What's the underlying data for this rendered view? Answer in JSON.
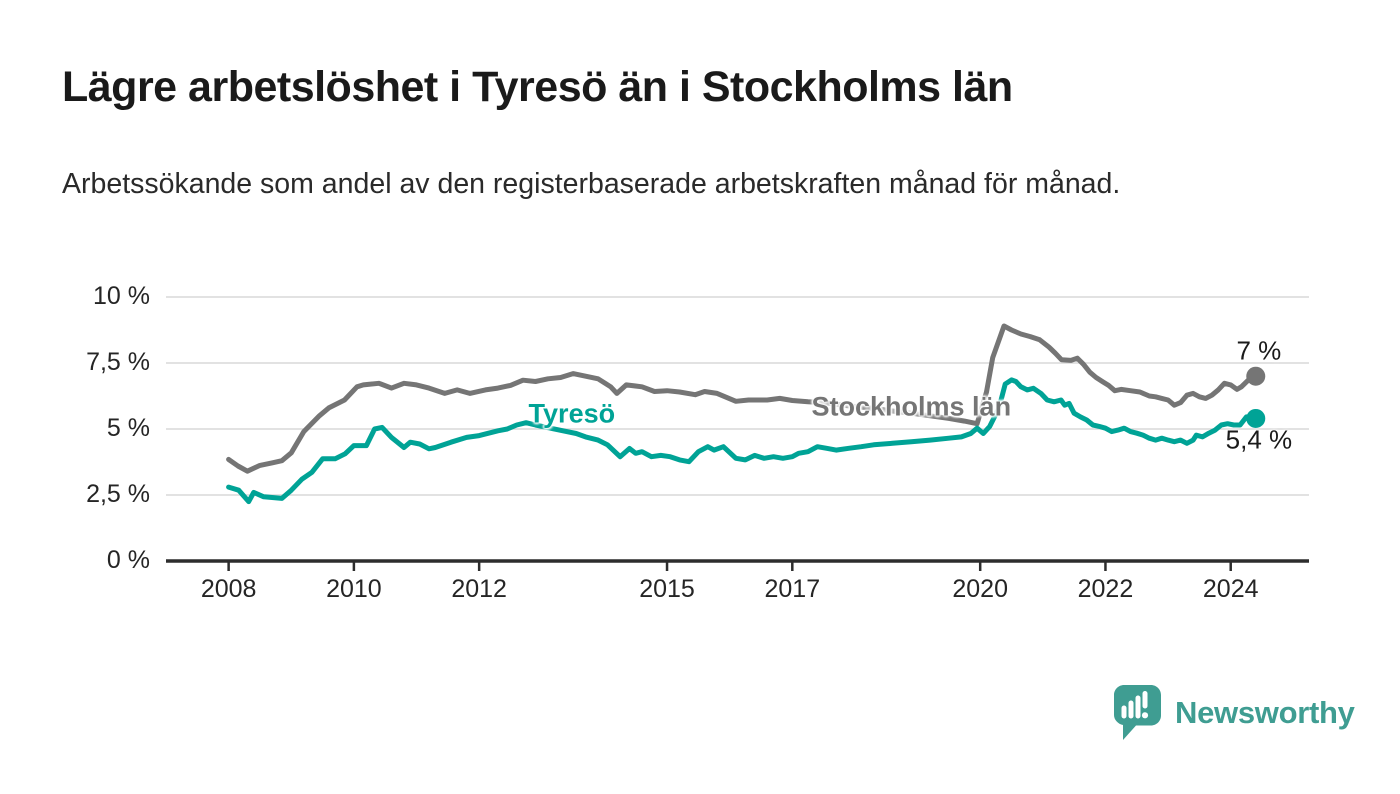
{
  "header": {
    "title": "Lägre arbetslöshet i Tyresö än i Stockholms län",
    "subtitle": "Arbetssökande som andel av den registerbaserade arbetskraften månad för månad."
  },
  "branding": {
    "name": "Newsworthy",
    "color": "#3f9d92",
    "icon": "speech-bubble-bar-chart"
  },
  "chart_data": {
    "type": "line",
    "title": "Lägre arbetslöshet i Tyresö än i Stockholms län",
    "xlabel": "",
    "ylabel": "",
    "grid": true,
    "x_axis": {
      "range": [
        2007.0,
        2025.25
      ],
      "ticks": [
        2008,
        2010,
        2012,
        2015,
        2017,
        2020,
        2022,
        2024
      ],
      "tick_labels": [
        "2008",
        "2010",
        "2012",
        "2015",
        "2017",
        "2020",
        "2022",
        "2024"
      ]
    },
    "y_axis": {
      "range": [
        0,
        10
      ],
      "unit": "%",
      "ticks": [
        0,
        2.5,
        5,
        7.5,
        10
      ],
      "tick_labels": [
        "0 %",
        "2,5 %",
        "5 %",
        "7,5 %",
        "10 %"
      ]
    },
    "colors": {
      "grid": "#d9d9d9",
      "axis": "#2d2d2d",
      "tick_text": "#252525",
      "annotation_text": "#1a1a1a"
    },
    "series": [
      {
        "name": "Stockholms län",
        "color": "#757575",
        "label_anchor": {
          "x": 2018.9,
          "y": 5.85
        },
        "end_label": "7 %",
        "end_value": 7.0,
        "end_label_anchor": {
          "x": 2024.45,
          "y": 7.95
        },
        "points": [
          [
            2008.0,
            3.85
          ],
          [
            2008.15,
            3.6
          ],
          [
            2008.3,
            3.4
          ],
          [
            2008.5,
            3.62
          ],
          [
            2008.7,
            3.72
          ],
          [
            2008.85,
            3.8
          ],
          [
            2009.0,
            4.1
          ],
          [
            2009.2,
            4.9
          ],
          [
            2009.45,
            5.5
          ],
          [
            2009.6,
            5.8
          ],
          [
            2009.85,
            6.1
          ],
          [
            2010.05,
            6.6
          ],
          [
            2010.15,
            6.67
          ],
          [
            2010.4,
            6.73
          ],
          [
            2010.6,
            6.55
          ],
          [
            2010.8,
            6.73
          ],
          [
            2011.0,
            6.67
          ],
          [
            2011.2,
            6.55
          ],
          [
            2011.45,
            6.35
          ],
          [
            2011.65,
            6.48
          ],
          [
            2011.85,
            6.35
          ],
          [
            2012.1,
            6.48
          ],
          [
            2012.3,
            6.55
          ],
          [
            2012.5,
            6.65
          ],
          [
            2012.7,
            6.85
          ],
          [
            2012.9,
            6.8
          ],
          [
            2013.1,
            6.9
          ],
          [
            2013.3,
            6.95
          ],
          [
            2013.5,
            7.1
          ],
          [
            2013.7,
            7.0
          ],
          [
            2013.9,
            6.9
          ],
          [
            2014.1,
            6.6
          ],
          [
            2014.2,
            6.35
          ],
          [
            2014.35,
            6.67
          ],
          [
            2014.6,
            6.6
          ],
          [
            2014.8,
            6.42
          ],
          [
            2015.0,
            6.45
          ],
          [
            2015.2,
            6.4
          ],
          [
            2015.45,
            6.3
          ],
          [
            2015.6,
            6.42
          ],
          [
            2015.8,
            6.35
          ],
          [
            2016.1,
            6.05
          ],
          [
            2016.3,
            6.1
          ],
          [
            2016.6,
            6.1
          ],
          [
            2016.8,
            6.16
          ],
          [
            2017.0,
            6.08
          ],
          [
            2017.25,
            6.03
          ],
          [
            2017.5,
            6.0
          ],
          [
            2017.75,
            5.92
          ],
          [
            2018.0,
            5.85
          ],
          [
            2018.3,
            5.78
          ],
          [
            2018.6,
            5.68
          ],
          [
            2018.9,
            5.6
          ],
          [
            2019.2,
            5.5
          ],
          [
            2019.5,
            5.4
          ],
          [
            2019.75,
            5.3
          ],
          [
            2019.95,
            5.2
          ],
          [
            2020.1,
            6.4
          ],
          [
            2020.2,
            7.7
          ],
          [
            2020.38,
            8.9
          ],
          [
            2020.5,
            8.75
          ],
          [
            2020.65,
            8.6
          ],
          [
            2020.8,
            8.5
          ],
          [
            2020.95,
            8.38
          ],
          [
            2021.1,
            8.1
          ],
          [
            2021.2,
            7.87
          ],
          [
            2021.3,
            7.62
          ],
          [
            2021.45,
            7.6
          ],
          [
            2021.55,
            7.68
          ],
          [
            2021.65,
            7.45
          ],
          [
            2021.75,
            7.15
          ],
          [
            2021.85,
            6.95
          ],
          [
            2021.95,
            6.8
          ],
          [
            2022.05,
            6.65
          ],
          [
            2022.15,
            6.45
          ],
          [
            2022.25,
            6.5
          ],
          [
            2022.4,
            6.45
          ],
          [
            2022.55,
            6.4
          ],
          [
            2022.7,
            6.25
          ],
          [
            2022.8,
            6.22
          ],
          [
            2022.9,
            6.16
          ],
          [
            2023.0,
            6.1
          ],
          [
            2023.1,
            5.9
          ],
          [
            2023.2,
            6.0
          ],
          [
            2023.3,
            6.28
          ],
          [
            2023.4,
            6.35
          ],
          [
            2023.5,
            6.22
          ],
          [
            2023.6,
            6.16
          ],
          [
            2023.7,
            6.28
          ],
          [
            2023.8,
            6.48
          ],
          [
            2023.9,
            6.73
          ],
          [
            2024.0,
            6.67
          ],
          [
            2024.1,
            6.5
          ],
          [
            2024.17,
            6.6
          ],
          [
            2024.28,
            6.85
          ],
          [
            2024.4,
            7.0
          ]
        ]
      },
      {
        "name": "Tyresö",
        "color": "#00a396",
        "label_anchor": {
          "x": 2013.48,
          "y": 5.57
        },
        "end_label": "5,4 %",
        "end_value": 5.4,
        "end_label_anchor": {
          "x": 2024.45,
          "y": 4.6
        },
        "points": [
          [
            2008.0,
            2.8
          ],
          [
            2008.16,
            2.68
          ],
          [
            2008.32,
            2.25
          ],
          [
            2008.4,
            2.6
          ],
          [
            2008.56,
            2.43
          ],
          [
            2008.85,
            2.37
          ],
          [
            2009.0,
            2.68
          ],
          [
            2009.17,
            3.1
          ],
          [
            2009.33,
            3.36
          ],
          [
            2009.5,
            3.87
          ],
          [
            2009.7,
            3.87
          ],
          [
            2009.86,
            4.06
          ],
          [
            2010.0,
            4.37
          ],
          [
            2010.2,
            4.37
          ],
          [
            2010.33,
            5.0
          ],
          [
            2010.45,
            5.06
          ],
          [
            2010.6,
            4.68
          ],
          [
            2010.8,
            4.3
          ],
          [
            2010.9,
            4.5
          ],
          [
            2011.05,
            4.43
          ],
          [
            2011.2,
            4.25
          ],
          [
            2011.3,
            4.3
          ],
          [
            2011.55,
            4.5
          ],
          [
            2011.8,
            4.68
          ],
          [
            2012.0,
            4.75
          ],
          [
            2012.3,
            4.93
          ],
          [
            2012.45,
            5.0
          ],
          [
            2012.6,
            5.15
          ],
          [
            2012.75,
            5.24
          ],
          [
            2012.9,
            5.15
          ],
          [
            2013.1,
            5.05
          ],
          [
            2013.3,
            4.95
          ],
          [
            2013.55,
            4.83
          ],
          [
            2013.7,
            4.7
          ],
          [
            2013.9,
            4.58
          ],
          [
            2014.05,
            4.4
          ],
          [
            2014.25,
            3.95
          ],
          [
            2014.4,
            4.26
          ],
          [
            2014.5,
            4.08
          ],
          [
            2014.6,
            4.14
          ],
          [
            2014.75,
            3.95
          ],
          [
            2014.9,
            4.0
          ],
          [
            2015.05,
            3.95
          ],
          [
            2015.2,
            3.83
          ],
          [
            2015.35,
            3.76
          ],
          [
            2015.5,
            4.14
          ],
          [
            2015.65,
            4.33
          ],
          [
            2015.75,
            4.2
          ],
          [
            2015.9,
            4.33
          ],
          [
            2016.1,
            3.89
          ],
          [
            2016.25,
            3.83
          ],
          [
            2016.4,
            4.0
          ],
          [
            2016.55,
            3.89
          ],
          [
            2016.7,
            3.95
          ],
          [
            2016.85,
            3.89
          ],
          [
            2017.0,
            3.95
          ],
          [
            2017.1,
            4.08
          ],
          [
            2017.25,
            4.14
          ],
          [
            2017.4,
            4.33
          ],
          [
            2017.55,
            4.27
          ],
          [
            2017.7,
            4.2
          ],
          [
            2017.9,
            4.27
          ],
          [
            2018.1,
            4.33
          ],
          [
            2018.3,
            4.4
          ],
          [
            2018.6,
            4.46
          ],
          [
            2018.9,
            4.52
          ],
          [
            2019.2,
            4.58
          ],
          [
            2019.5,
            4.65
          ],
          [
            2019.7,
            4.7
          ],
          [
            2019.85,
            4.83
          ],
          [
            2019.95,
            5.03
          ],
          [
            2020.05,
            4.83
          ],
          [
            2020.15,
            5.09
          ],
          [
            2020.3,
            5.8
          ],
          [
            2020.4,
            6.7
          ],
          [
            2020.5,
            6.86
          ],
          [
            2020.57,
            6.8
          ],
          [
            2020.65,
            6.6
          ],
          [
            2020.75,
            6.48
          ],
          [
            2020.85,
            6.54
          ],
          [
            2020.97,
            6.35
          ],
          [
            2021.07,
            6.1
          ],
          [
            2021.18,
            6.03
          ],
          [
            2021.29,
            6.1
          ],
          [
            2021.35,
            5.9
          ],
          [
            2021.42,
            5.97
          ],
          [
            2021.5,
            5.6
          ],
          [
            2021.6,
            5.46
          ],
          [
            2021.7,
            5.34
          ],
          [
            2021.8,
            5.15
          ],
          [
            2021.9,
            5.1
          ],
          [
            2022.0,
            5.03
          ],
          [
            2022.1,
            4.9
          ],
          [
            2022.2,
            4.96
          ],
          [
            2022.3,
            5.03
          ],
          [
            2022.4,
            4.9
          ],
          [
            2022.5,
            4.84
          ],
          [
            2022.6,
            4.77
          ],
          [
            2022.7,
            4.65
          ],
          [
            2022.8,
            4.58
          ],
          [
            2022.9,
            4.65
          ],
          [
            2023.0,
            4.58
          ],
          [
            2023.1,
            4.52
          ],
          [
            2023.2,
            4.58
          ],
          [
            2023.3,
            4.46
          ],
          [
            2023.4,
            4.58
          ],
          [
            2023.45,
            4.77
          ],
          [
            2023.55,
            4.7
          ],
          [
            2023.65,
            4.84
          ],
          [
            2023.75,
            4.96
          ],
          [
            2023.85,
            5.15
          ],
          [
            2023.95,
            5.2
          ],
          [
            2024.05,
            5.15
          ],
          [
            2024.15,
            5.15
          ],
          [
            2024.25,
            5.46
          ],
          [
            2024.4,
            5.4
          ]
        ]
      }
    ]
  }
}
